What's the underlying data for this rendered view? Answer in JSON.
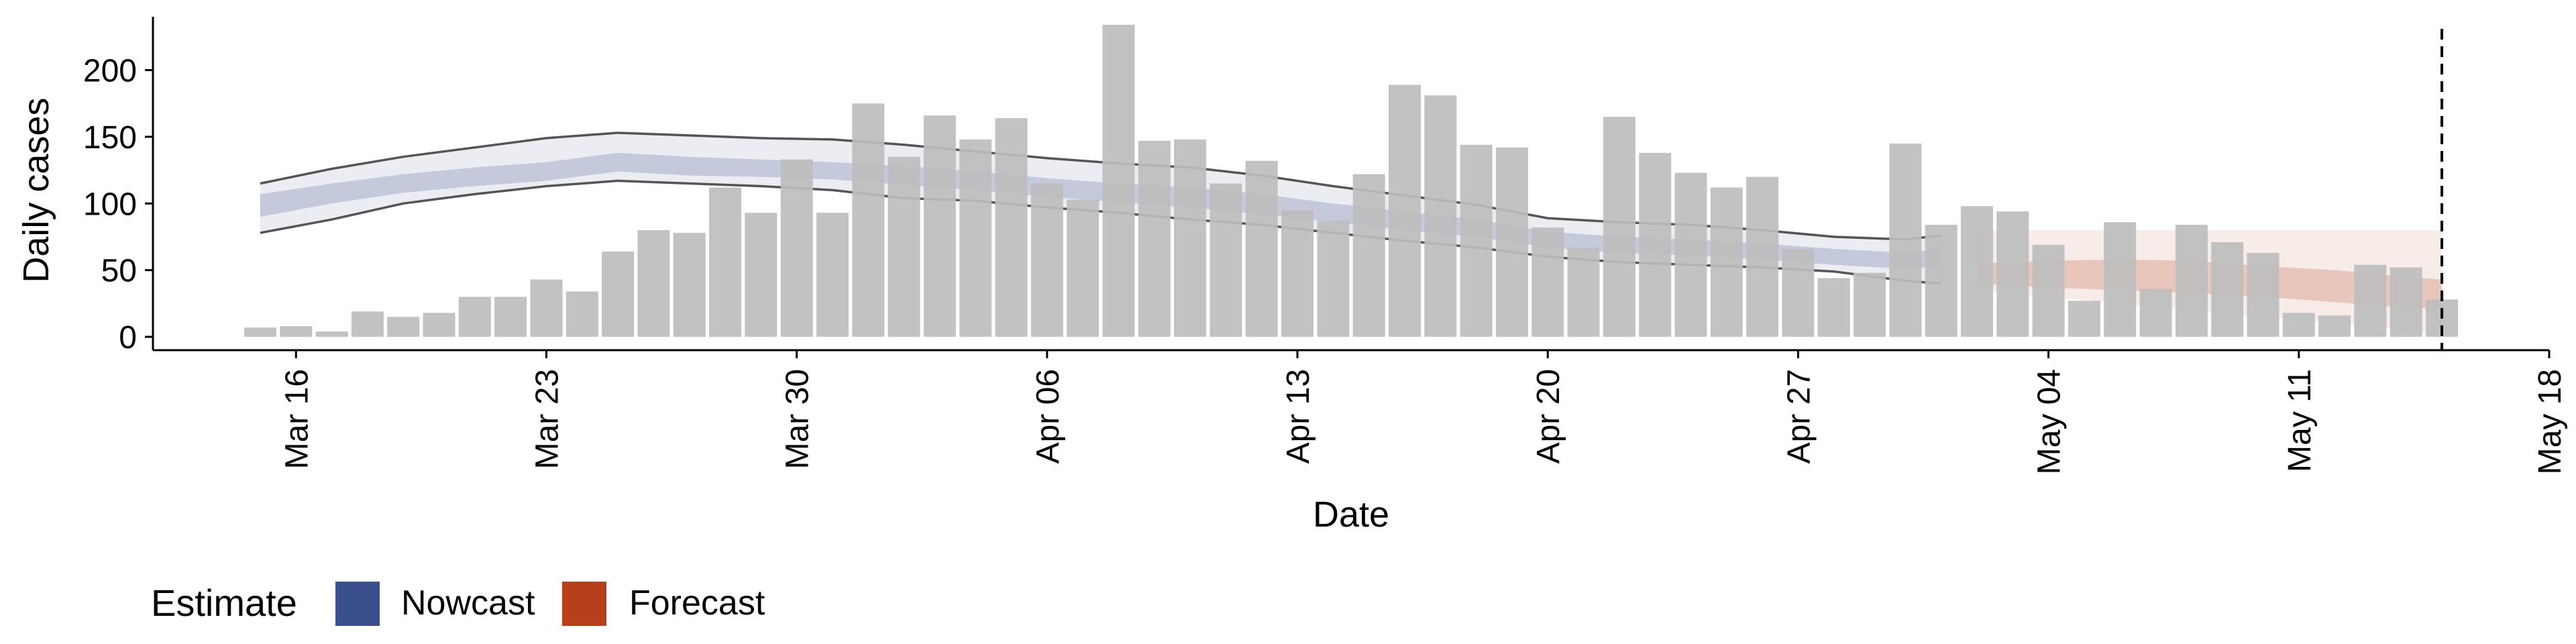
{
  "chart_data": {
    "type": "bar",
    "xlabel": "Date",
    "ylabel": "Daily cases",
    "x_range": [
      "2020-03-12",
      "2020-05-18"
    ],
    "ylim": [
      -10,
      240
    ],
    "x_ticks": [
      {
        "date": "2020-03-16",
        "label": "Mar 16"
      },
      {
        "date": "2020-03-23",
        "label": "Mar 23"
      },
      {
        "date": "2020-03-30",
        "label": "Mar 30"
      },
      {
        "date": "2020-04-06",
        "label": "Apr 06"
      },
      {
        "date": "2020-04-13",
        "label": "Apr 13"
      },
      {
        "date": "2020-04-20",
        "label": "Apr 20"
      },
      {
        "date": "2020-04-27",
        "label": "Apr 27"
      },
      {
        "date": "2020-05-04",
        "label": "May 04"
      },
      {
        "date": "2020-05-11",
        "label": "May 11"
      },
      {
        "date": "2020-05-18",
        "label": "May 18"
      }
    ],
    "y_ticks": [
      0,
      50,
      100,
      150,
      200
    ],
    "reference_line_date": "2020-05-15",
    "grid": false,
    "bar_series": {
      "dates": [
        "2020-03-15",
        "2020-03-16",
        "2020-03-17",
        "2020-03-18",
        "2020-03-19",
        "2020-03-20",
        "2020-03-21",
        "2020-03-22",
        "2020-03-23",
        "2020-03-24",
        "2020-03-25",
        "2020-03-26",
        "2020-03-27",
        "2020-03-28",
        "2020-03-29",
        "2020-03-30",
        "2020-03-31",
        "2020-04-01",
        "2020-04-02",
        "2020-04-03",
        "2020-04-04",
        "2020-04-05",
        "2020-04-06",
        "2020-04-07",
        "2020-04-08",
        "2020-04-09",
        "2020-04-10",
        "2020-04-11",
        "2020-04-12",
        "2020-04-13",
        "2020-04-14",
        "2020-04-15",
        "2020-04-16",
        "2020-04-17",
        "2020-04-18",
        "2020-04-19",
        "2020-04-20",
        "2020-04-21",
        "2020-04-22",
        "2020-04-23",
        "2020-04-24",
        "2020-04-25",
        "2020-04-26",
        "2020-04-27",
        "2020-04-28",
        "2020-04-29",
        "2020-04-30",
        "2020-05-01",
        "2020-05-02",
        "2020-05-03",
        "2020-05-04",
        "2020-05-05",
        "2020-05-06",
        "2020-05-07",
        "2020-05-08",
        "2020-05-09",
        "2020-05-10",
        "2020-05-11",
        "2020-05-12",
        "2020-05-13",
        "2020-05-14",
        "2020-05-15"
      ],
      "values": [
        7,
        8,
        4,
        19,
        15,
        18,
        30,
        30,
        43,
        34,
        64,
        80,
        78,
        112,
        93,
        133,
        93,
        175,
        135,
        166,
        148,
        164,
        115,
        103,
        234,
        147,
        148,
        115,
        132,
        95,
        87,
        122,
        189,
        181,
        144,
        142,
        82,
        67,
        165,
        138,
        123,
        112,
        120,
        66,
        44,
        48,
        145,
        84,
        98,
        94,
        69,
        27,
        86,
        36,
        84,
        71,
        63,
        18,
        16,
        54,
        52,
        28
      ],
      "color": "#bdbdbd"
    },
    "ribbon_series": [
      {
        "legend": "Nowcast",
        "color": "#3b4f8c",
        "dates": [
          "2020-03-15",
          "2020-03-17",
          "2020-03-19",
          "2020-03-21",
          "2020-03-23",
          "2020-03-25",
          "2020-03-27",
          "2020-03-29",
          "2020-03-31",
          "2020-04-02",
          "2020-04-04",
          "2020-04-06",
          "2020-04-08",
          "2020-04-10",
          "2020-04-12",
          "2020-04-14",
          "2020-04-16",
          "2020-04-18",
          "2020-04-20",
          "2020-04-22",
          "2020-04-24",
          "2020-04-26",
          "2020-04-28",
          "2020-04-30",
          "2020-05-01"
        ],
        "outer_upper": [
          115,
          126,
          135,
          142,
          149,
          153,
          151,
          149,
          148,
          144,
          139,
          134,
          130,
          127,
          121,
          113,
          106,
          99,
          89,
          86,
          84,
          80,
          75,
          73,
          76
        ],
        "outer_lower": [
          78,
          88,
          100,
          107,
          113,
          117,
          115,
          113,
          110,
          104,
          102,
          97,
          93,
          88,
          84,
          78,
          72,
          67,
          60,
          56,
          54,
          52,
          49,
          42,
          40
        ],
        "inner_upper": [
          107,
          115,
          122,
          127,
          131,
          138,
          135,
          133,
          131,
          128,
          124,
          119,
          115,
          112,
          107,
          100,
          94,
          88,
          79,
          75,
          73,
          70,
          66,
          63,
          66
        ],
        "inner_lower": [
          90,
          100,
          108,
          113,
          117,
          124,
          121,
          120,
          118,
          114,
          110,
          105,
          101,
          97,
          92,
          86,
          80,
          75,
          67,
          63,
          61,
          58,
          54,
          51,
          53
        ]
      },
      {
        "legend": "Forecast",
        "color": "#b5401a",
        "dates": [
          "2020-05-02",
          "2020-05-04",
          "2020-05-06",
          "2020-05-08",
          "2020-05-10",
          "2020-05-12",
          "2020-05-14",
          "2020-05-15"
        ],
        "outer_upper": [
          80,
          80,
          80,
          80,
          80,
          80,
          80,
          80
        ],
        "outer_lower": [
          34,
          30,
          25,
          20,
          15,
          10,
          5,
          0
        ],
        "inner_upper": [
          55,
          57,
          58,
          57,
          53,
          50,
          45,
          43
        ],
        "inner_lower": [
          40,
          37,
          35,
          33,
          30,
          26,
          22,
          21
        ]
      }
    ],
    "legend": {
      "title": "Estimate",
      "position": "bottom-left",
      "items": [
        {
          "label": "Nowcast",
          "color": "#3b4f8c"
        },
        {
          "label": "Forecast",
          "color": "#b5401a"
        }
      ]
    }
  }
}
